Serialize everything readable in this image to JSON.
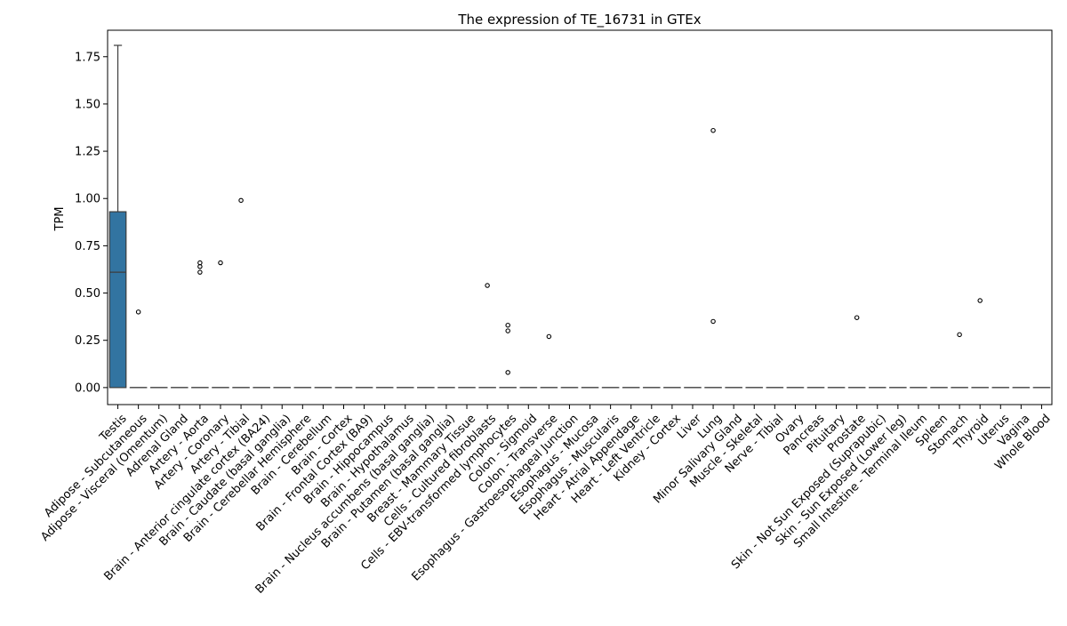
{
  "colors": {
    "box_fill": "#3274a1",
    "box_edge": "#3d3d3d",
    "flier": "#000000"
  },
  "chart_data": {
    "type": "box",
    "title": "The expression of TE_16731 in GTEx",
    "xlabel": "",
    "ylabel": "TPM",
    "ylim": [
      -0.09,
      1.89
    ],
    "yticks": [
      "0.00",
      "0.25",
      "0.50",
      "0.75",
      "1.00",
      "1.25",
      "1.50",
      "1.75"
    ],
    "grid": false,
    "legend": "none",
    "categories": [
      "Testis",
      "Adipose - Subcutaneous",
      "Adipose - Visceral (Omentum)",
      "Adrenal Gland",
      "Artery - Aorta",
      "Artery - Coronary",
      "Artery - Tibial",
      "Brain - Anterior cingulate cortex (BA24)",
      "Brain - Caudate (basal ganglia)",
      "Brain - Cerebellar Hemisphere",
      "Brain - Cerebellum",
      "Brain - Cortex",
      "Brain - Frontal Cortex (BA9)",
      "Brain - Hippocampus",
      "Brain - Hypothalamus",
      "Brain - Nucleus accumbens (basal ganglia)",
      "Brain - Putamen (basal ganglia)",
      "Breast - Mammary Tissue",
      "Cells - Cultured fibroblasts",
      "Cells - EBV-transformed lymphocytes",
      "Colon - Sigmoid",
      "Colon - Transverse",
      "Esophagus - Gastroesophageal Junction",
      "Esophagus - Mucosa",
      "Esophagus - Muscularis",
      "Heart - Atrial Appendage",
      "Heart - Left Ventricle",
      "Kidney - Cortex",
      "Liver",
      "Lung",
      "Minor Salivary Gland",
      "Muscle - Skeletal",
      "Nerve - Tibial",
      "Ovary",
      "Pancreas",
      "Pituitary",
      "Prostate",
      "Skin - Not Sun Exposed (Suprapubic)",
      "Skin - Sun Exposed (Lower leg)",
      "Small Intestine - Terminal Ileum",
      "Spleen",
      "Stomach",
      "Thyroid",
      "Uterus",
      "Vagina",
      "Whole Blood"
    ],
    "boxes": [
      {
        "q1": 0.0,
        "median": 0.61,
        "q3": 0.93,
        "whisker_low": 0.0,
        "whisker_high": 1.81,
        "fliers": []
      },
      {
        "q1": 0,
        "median": 0,
        "q3": 0,
        "whisker_low": 0,
        "whisker_high": 0,
        "fliers": [
          0.4
        ]
      },
      {
        "q1": 0,
        "median": 0,
        "q3": 0,
        "whisker_low": 0,
        "whisker_high": 0,
        "fliers": []
      },
      {
        "q1": 0,
        "median": 0,
        "q3": 0,
        "whisker_low": 0,
        "whisker_high": 0,
        "fliers": []
      },
      {
        "q1": 0,
        "median": 0,
        "q3": 0,
        "whisker_low": 0,
        "whisker_high": 0,
        "fliers": [
          0.61,
          0.64,
          0.66
        ]
      },
      {
        "q1": 0,
        "median": 0,
        "q3": 0,
        "whisker_low": 0,
        "whisker_high": 0,
        "fliers": [
          0.66
        ]
      },
      {
        "q1": 0,
        "median": 0,
        "q3": 0,
        "whisker_low": 0,
        "whisker_high": 0,
        "fliers": [
          0.99
        ]
      },
      {
        "q1": 0,
        "median": 0,
        "q3": 0,
        "whisker_low": 0,
        "whisker_high": 0,
        "fliers": []
      },
      {
        "q1": 0,
        "median": 0,
        "q3": 0,
        "whisker_low": 0,
        "whisker_high": 0,
        "fliers": []
      },
      {
        "q1": 0,
        "median": 0,
        "q3": 0,
        "whisker_low": 0,
        "whisker_high": 0,
        "fliers": []
      },
      {
        "q1": 0,
        "median": 0,
        "q3": 0,
        "whisker_low": 0,
        "whisker_high": 0,
        "fliers": []
      },
      {
        "q1": 0,
        "median": 0,
        "q3": 0,
        "whisker_low": 0,
        "whisker_high": 0,
        "fliers": []
      },
      {
        "q1": 0,
        "median": 0,
        "q3": 0,
        "whisker_low": 0,
        "whisker_high": 0,
        "fliers": []
      },
      {
        "q1": 0,
        "median": 0,
        "q3": 0,
        "whisker_low": 0,
        "whisker_high": 0,
        "fliers": []
      },
      {
        "q1": 0,
        "median": 0,
        "q3": 0,
        "whisker_low": 0,
        "whisker_high": 0,
        "fliers": []
      },
      {
        "q1": 0,
        "median": 0,
        "q3": 0,
        "whisker_low": 0,
        "whisker_high": 0,
        "fliers": []
      },
      {
        "q1": 0,
        "median": 0,
        "q3": 0,
        "whisker_low": 0,
        "whisker_high": 0,
        "fliers": []
      },
      {
        "q1": 0,
        "median": 0,
        "q3": 0,
        "whisker_low": 0,
        "whisker_high": 0,
        "fliers": []
      },
      {
        "q1": 0,
        "median": 0,
        "q3": 0,
        "whisker_low": 0,
        "whisker_high": 0,
        "fliers": [
          0.54
        ]
      },
      {
        "q1": 0,
        "median": 0,
        "q3": 0,
        "whisker_low": 0,
        "whisker_high": 0,
        "fliers": [
          0.08,
          0.3,
          0.33
        ]
      },
      {
        "q1": 0,
        "median": 0,
        "q3": 0,
        "whisker_low": 0,
        "whisker_high": 0,
        "fliers": []
      },
      {
        "q1": 0,
        "median": 0,
        "q3": 0,
        "whisker_low": 0,
        "whisker_high": 0,
        "fliers": [
          0.27
        ]
      },
      {
        "q1": 0,
        "median": 0,
        "q3": 0,
        "whisker_low": 0,
        "whisker_high": 0,
        "fliers": []
      },
      {
        "q1": 0,
        "median": 0,
        "q3": 0,
        "whisker_low": 0,
        "whisker_high": 0,
        "fliers": []
      },
      {
        "q1": 0,
        "median": 0,
        "q3": 0,
        "whisker_low": 0,
        "whisker_high": 0,
        "fliers": []
      },
      {
        "q1": 0,
        "median": 0,
        "q3": 0,
        "whisker_low": 0,
        "whisker_high": 0,
        "fliers": []
      },
      {
        "q1": 0,
        "median": 0,
        "q3": 0,
        "whisker_low": 0,
        "whisker_high": 0,
        "fliers": []
      },
      {
        "q1": 0,
        "median": 0,
        "q3": 0,
        "whisker_low": 0,
        "whisker_high": 0,
        "fliers": []
      },
      {
        "q1": 0,
        "median": 0,
        "q3": 0,
        "whisker_low": 0,
        "whisker_high": 0,
        "fliers": []
      },
      {
        "q1": 0,
        "median": 0,
        "q3": 0,
        "whisker_low": 0,
        "whisker_high": 0,
        "fliers": [
          0.35,
          1.36
        ]
      },
      {
        "q1": 0,
        "median": 0,
        "q3": 0,
        "whisker_low": 0,
        "whisker_high": 0,
        "fliers": []
      },
      {
        "q1": 0,
        "median": 0,
        "q3": 0,
        "whisker_low": 0,
        "whisker_high": 0,
        "fliers": []
      },
      {
        "q1": 0,
        "median": 0,
        "q3": 0,
        "whisker_low": 0,
        "whisker_high": 0,
        "fliers": []
      },
      {
        "q1": 0,
        "median": 0,
        "q3": 0,
        "whisker_low": 0,
        "whisker_high": 0,
        "fliers": []
      },
      {
        "q1": 0,
        "median": 0,
        "q3": 0,
        "whisker_low": 0,
        "whisker_high": 0,
        "fliers": []
      },
      {
        "q1": 0,
        "median": 0,
        "q3": 0,
        "whisker_low": 0,
        "whisker_high": 0,
        "fliers": []
      },
      {
        "q1": 0,
        "median": 0,
        "q3": 0,
        "whisker_low": 0,
        "whisker_high": 0,
        "fliers": [
          0.37
        ]
      },
      {
        "q1": 0,
        "median": 0,
        "q3": 0,
        "whisker_low": 0,
        "whisker_high": 0,
        "fliers": []
      },
      {
        "q1": 0,
        "median": 0,
        "q3": 0,
        "whisker_low": 0,
        "whisker_high": 0,
        "fliers": []
      },
      {
        "q1": 0,
        "median": 0,
        "q3": 0,
        "whisker_low": 0,
        "whisker_high": 0,
        "fliers": []
      },
      {
        "q1": 0,
        "median": 0,
        "q3": 0,
        "whisker_low": 0,
        "whisker_high": 0,
        "fliers": []
      },
      {
        "q1": 0,
        "median": 0,
        "q3": 0,
        "whisker_low": 0,
        "whisker_high": 0,
        "fliers": [
          0.28
        ]
      },
      {
        "q1": 0,
        "median": 0,
        "q3": 0,
        "whisker_low": 0,
        "whisker_high": 0,
        "fliers": [
          0.46
        ]
      },
      {
        "q1": 0,
        "median": 0,
        "q3": 0,
        "whisker_low": 0,
        "whisker_high": 0,
        "fliers": []
      },
      {
        "q1": 0,
        "median": 0,
        "q3": 0,
        "whisker_low": 0,
        "whisker_high": 0,
        "fliers": []
      },
      {
        "q1": 0,
        "median": 0,
        "q3": 0,
        "whisker_low": 0,
        "whisker_high": 0,
        "fliers": []
      }
    ]
  }
}
